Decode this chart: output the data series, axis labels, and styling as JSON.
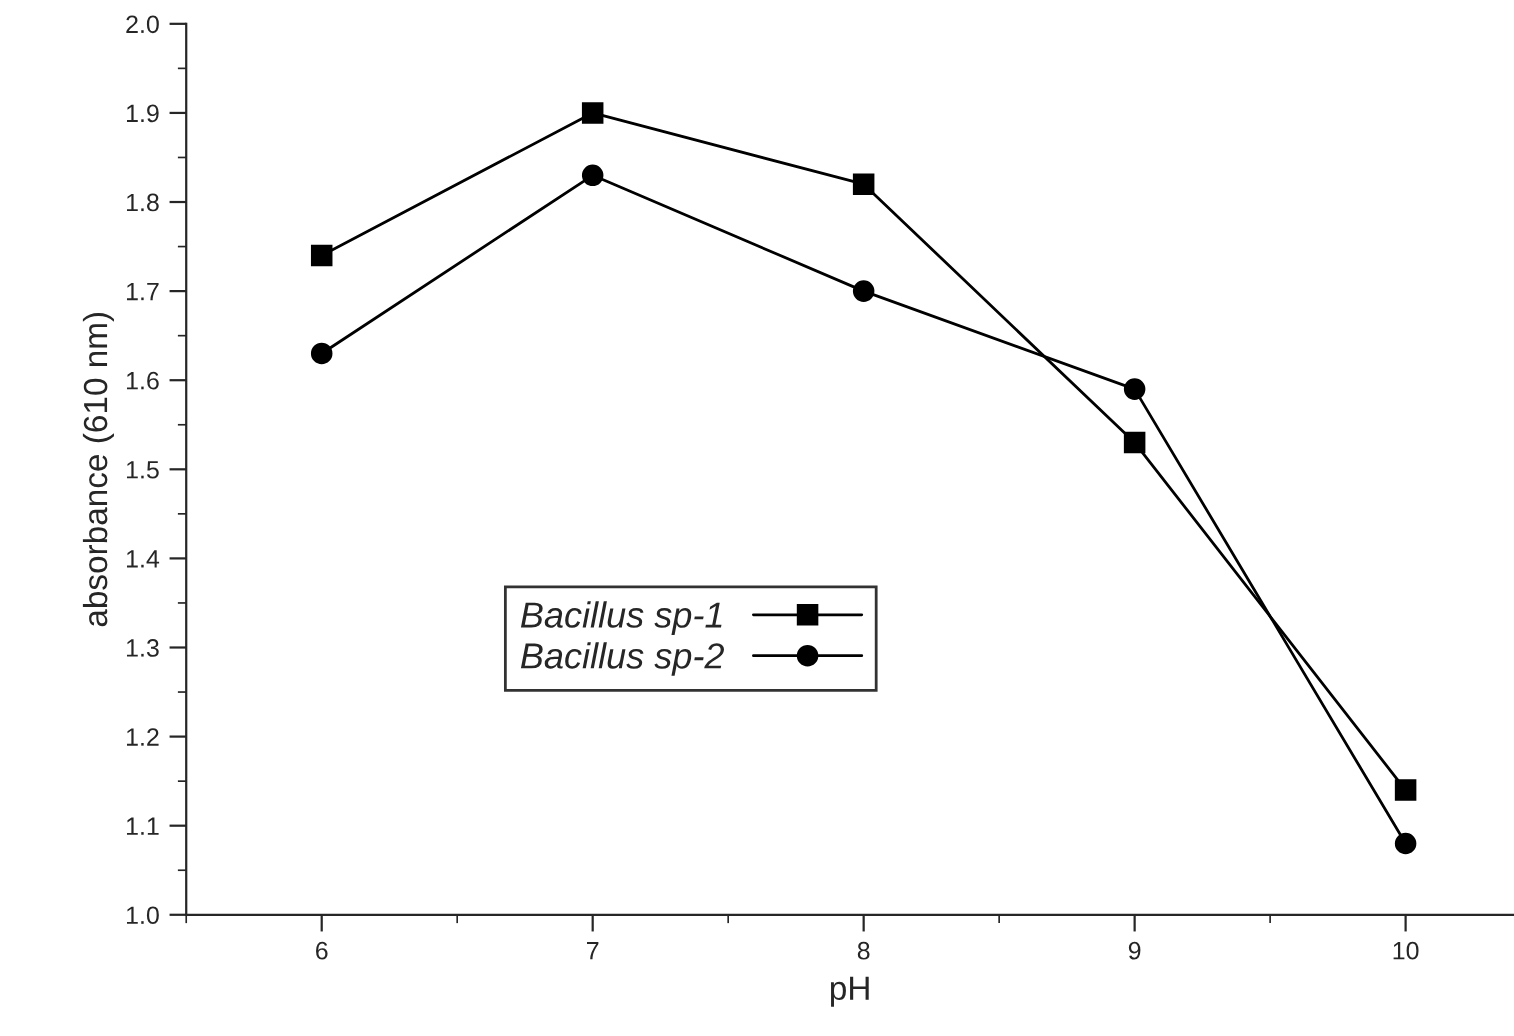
{
  "chart_data": {
    "type": "line",
    "xlabel": "pH",
    "ylabel": "absorbance (610 nm)",
    "x": [
      6,
      7,
      8,
      9,
      10
    ],
    "series": [
      {
        "name": "Bacillus sp-1",
        "color": "#000000",
        "marker": "square",
        "values": [
          1.74,
          1.9,
          1.82,
          1.53,
          1.14
        ]
      },
      {
        "name": "Bacillus sp-2",
        "color": "#000000",
        "marker": "circle",
        "values": [
          1.63,
          1.83,
          1.7,
          1.59,
          1.08
        ]
      }
    ],
    "xlim": [
      5.5,
      10.4
    ],
    "xticks": [
      6,
      7,
      8,
      9,
      10
    ],
    "ylim": [
      1.0,
      2.0
    ],
    "yticks": [
      {
        "value": 1.0,
        "label": "1.0"
      },
      1.1,
      1.2,
      1.3,
      1.4,
      1.5,
      1.6,
      1.7,
      1.8,
      1.9,
      {
        "value": 2.0,
        "label": "2.0"
      }
    ],
    "legend": "center",
    "grid": false,
    "line_style": "solid"
  }
}
